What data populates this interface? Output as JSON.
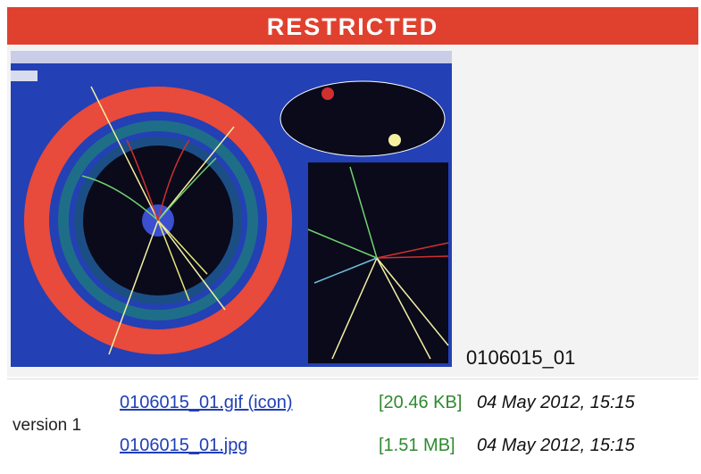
{
  "banner": "RESTRICTED",
  "caption": "0106015_01",
  "versions": [
    {
      "label": "version 1",
      "files": [
        {
          "name": "0106015_01.gif (icon)",
          "size": "[20.46 KB]",
          "date": "04 May 2012, 15:15"
        },
        {
          "name": "0106015_01.jpg",
          "size": "[1.51 MB]",
          "date": "04 May 2012, 15:15"
        }
      ]
    }
  ]
}
